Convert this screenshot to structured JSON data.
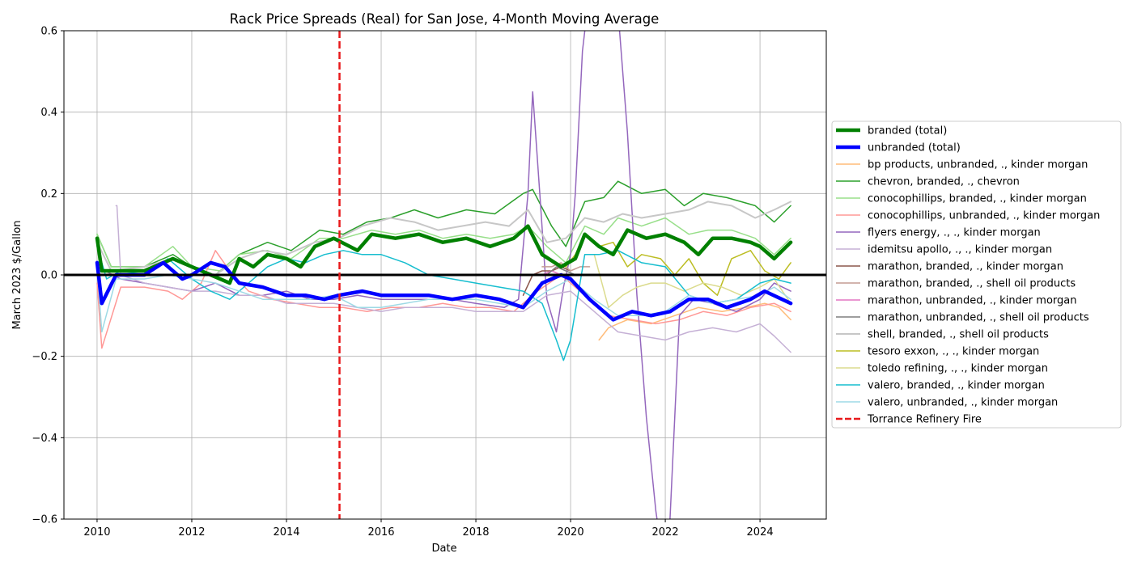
{
  "chart_data": {
    "type": "line",
    "title": "Rack Price Spreads (Real) for San Jose, 4-Month Moving Average",
    "xlabel": "Date",
    "ylabel": "March 2023 $/Gallon",
    "xlim": [
      2009.3,
      2025.4
    ],
    "ylim": [
      -0.6,
      0.6
    ],
    "x_ticks": [
      2010,
      2012,
      2014,
      2016,
      2018,
      2020,
      2022,
      2024
    ],
    "y_ticks": [
      -0.6,
      -0.4,
      -0.2,
      0.0,
      0.2,
      0.4,
      0.6
    ],
    "x_tick_labels": [
      "2010",
      "2012",
      "2014",
      "2016",
      "2018",
      "2020",
      "2022",
      "2024"
    ],
    "y_tick_labels": [
      "−0.6",
      "−0.4",
      "−0.2",
      "0.0",
      "0.2",
      "0.4",
      "0.6"
    ],
    "grid": true,
    "legend_position": "outside-right",
    "zero_line": {
      "y": 0.0,
      "color": "#000000"
    },
    "event_line": {
      "x": 2015.12,
      "name": "Torrance Refinery Fire",
      "color": "#e8191b",
      "dashed": true
    },
    "series": [
      {
        "name": "branded (total)",
        "color": "#008000",
        "width": 4.5,
        "x": [
          2010.0,
          2010.1,
          2010.4,
          2011.0,
          2011.6,
          2012.0,
          2012.4,
          2012.8,
          2013.0,
          2013.3,
          2013.6,
          2014.0,
          2014.3,
          2014.6,
          2015.0,
          2015.5,
          2015.8,
          2016.3,
          2016.8,
          2017.3,
          2017.8,
          2018.3,
          2018.8,
          2019.1,
          2019.4,
          2019.8,
          2020.1,
          2020.3,
          2020.6,
          2020.9,
          2021.2,
          2021.6,
          2022.0,
          2022.4,
          2022.7,
          2023.0,
          2023.4,
          2023.8,
          2024.0,
          2024.3,
          2024.65
        ],
        "y": [
          0.09,
          0.01,
          0.01,
          0.01,
          0.04,
          0.02,
          0.0,
          -0.02,
          0.04,
          0.02,
          0.05,
          0.04,
          0.02,
          0.07,
          0.09,
          0.06,
          0.1,
          0.09,
          0.1,
          0.08,
          0.09,
          0.07,
          0.09,
          0.12,
          0.05,
          0.02,
          0.04,
          0.1,
          0.07,
          0.05,
          0.11,
          0.09,
          0.1,
          0.08,
          0.05,
          0.09,
          0.09,
          0.08,
          0.07,
          0.04,
          0.08
        ]
      },
      {
        "name": "unbranded (total)",
        "color": "#0000ff",
        "width": 4.5,
        "x": [
          2010.0,
          2010.1,
          2010.4,
          2011.0,
          2011.4,
          2011.8,
          2012.0,
          2012.4,
          2012.7,
          2013.0,
          2013.5,
          2014.0,
          2014.4,
          2014.8,
          2015.1,
          2015.6,
          2016.0,
          2016.5,
          2017.0,
          2017.5,
          2018.0,
          2018.5,
          2019.0,
          2019.4,
          2019.8,
          2020.0,
          2020.4,
          2020.9,
          2021.3,
          2021.7,
          2022.1,
          2022.5,
          2022.9,
          2023.3,
          2023.8,
          2024.1,
          2024.65
        ],
        "y": [
          0.03,
          -0.07,
          0.0,
          0.0,
          0.03,
          -0.01,
          0.0,
          0.03,
          0.02,
          -0.02,
          -0.03,
          -0.05,
          -0.05,
          -0.06,
          -0.05,
          -0.04,
          -0.05,
          -0.05,
          -0.05,
          -0.06,
          -0.05,
          -0.06,
          -0.08,
          -0.02,
          0.0,
          -0.01,
          -0.06,
          -0.11,
          -0.09,
          -0.1,
          -0.09,
          -0.06,
          -0.06,
          -0.08,
          -0.06,
          -0.04,
          -0.07
        ]
      },
      {
        "name": "bp products, unbranded, ., kinder morgan",
        "color": "#ffbb78",
        "width": 1.5,
        "x": [
          2020.6,
          2020.8,
          2021.2,
          2021.7,
          2022.2,
          2022.7,
          2023.2,
          2023.7,
          2024.1,
          2024.4,
          2024.65
        ],
        "y": [
          -0.16,
          -0.13,
          -0.11,
          -0.12,
          -0.1,
          -0.08,
          -0.09,
          -0.08,
          -0.07,
          -0.08,
          -0.11
        ]
      },
      {
        "name": "chevron, branded, ., chevron",
        "color": "#2ca02c",
        "width": 1.5,
        "x": [
          2010.0,
          2010.3,
          2011.0,
          2011.6,
          2012.0,
          2012.5,
          2013.0,
          2013.6,
          2014.1,
          2014.7,
          2015.2,
          2015.7,
          2016.2,
          2016.7,
          2017.2,
          2017.8,
          2018.4,
          2019.0,
          2019.2,
          2019.6,
          2019.9,
          2020.3,
          2020.7,
          2021.0,
          2021.5,
          2022.0,
          2022.4,
          2022.8,
          2023.3,
          2023.9,
          2024.3,
          2024.65
        ],
        "y": [
          0.1,
          0.02,
          0.02,
          0.05,
          0.02,
          0.0,
          0.05,
          0.08,
          0.06,
          0.11,
          0.1,
          0.13,
          0.14,
          0.16,
          0.14,
          0.16,
          0.15,
          0.2,
          0.21,
          0.12,
          0.07,
          0.18,
          0.19,
          0.23,
          0.2,
          0.21,
          0.17,
          0.2,
          0.19,
          0.17,
          0.13,
          0.17
        ]
      },
      {
        "name": "conocophillips, branded, ., kinder morgan",
        "color": "#98df8a",
        "width": 1.5,
        "x": [
          2010.0,
          2010.3,
          2011.0,
          2011.6,
          2012.0,
          2012.6,
          2013.0,
          2013.6,
          2014.1,
          2014.7,
          2015.2,
          2015.8,
          2016.3,
          2016.8,
          2017.3,
          2017.8,
          2018.3,
          2018.8,
          2019.1,
          2019.5,
          2019.9,
          2020.3,
          2020.7,
          2021.0,
          2021.5,
          2022.0,
          2022.5,
          2022.9,
          2023.4,
          2023.9,
          2024.3,
          2024.65
        ],
        "y": [
          0.1,
          0.02,
          0.02,
          0.07,
          0.02,
          0.01,
          0.05,
          0.06,
          0.04,
          0.09,
          0.09,
          0.11,
          0.1,
          0.11,
          0.09,
          0.1,
          0.09,
          0.1,
          0.12,
          0.07,
          0.03,
          0.12,
          0.1,
          0.14,
          0.12,
          0.14,
          0.1,
          0.11,
          0.11,
          0.09,
          0.05,
          0.09
        ]
      },
      {
        "name": "conocophillips, unbranded, ., kinder morgan",
        "color": "#ff9896",
        "width": 1.5,
        "x": [
          2010.0,
          2010.1,
          2010.5,
          2011.0,
          2011.5,
          2011.8,
          2012.2,
          2012.5,
          2012.8,
          2013.2,
          2013.7,
          2014.2,
          2014.7,
          2015.2,
          2015.7,
          2016.2,
          2016.8,
          2017.3,
          2017.8,
          2018.3,
          2018.8,
          2019.3,
          2019.8,
          2020.3,
          2020.8,
          2021.3,
          2021.8,
          2022.3,
          2022.8,
          2023.3,
          2023.8,
          2024.3,
          2024.65
        ],
        "y": [
          -0.02,
          -0.18,
          -0.03,
          -0.03,
          -0.04,
          -0.06,
          -0.02,
          0.06,
          0.01,
          -0.04,
          -0.06,
          -0.07,
          -0.08,
          -0.08,
          -0.09,
          -0.08,
          -0.08,
          -0.07,
          -0.08,
          -0.08,
          -0.09,
          -0.04,
          0.0,
          -0.05,
          -0.1,
          -0.11,
          -0.12,
          -0.11,
          -0.09,
          -0.1,
          -0.08,
          -0.07,
          -0.09
        ]
      },
      {
        "name": "flyers energy, ., ., kinder morgan",
        "color": "#9467bd",
        "width": 1.5,
        "x": [
          2010.0,
          2010.5,
          2011.0,
          2011.5,
          2012.0,
          2012.5,
          2013.0,
          2013.5,
          2014.0,
          2014.5,
          2015.0,
          2015.5,
          2016.0,
          2016.5,
          2017.0,
          2017.5,
          2018.0,
          2018.6,
          2018.9,
          2019.1,
          2019.2,
          2019.35,
          2019.5,
          2019.7,
          2019.85,
          2020.0,
          2020.1,
          2020.25,
          2020.4,
          2020.6,
          2020.8,
          2021.0,
          2021.2,
          2021.4,
          2021.6,
          2021.8,
          2021.95,
          2022.0,
          2022.1,
          2022.3,
          2022.6,
          2023.0,
          2023.5,
          2024.0,
          2024.3,
          2024.65
        ],
        "y": [
          0.02,
          -0.01,
          -0.02,
          -0.03,
          -0.04,
          -0.02,
          -0.05,
          -0.05,
          -0.04,
          -0.06,
          -0.06,
          -0.05,
          -0.06,
          -0.06,
          -0.06,
          -0.06,
          -0.07,
          -0.08,
          -0.06,
          0.2,
          0.45,
          0.2,
          -0.06,
          -0.14,
          -0.03,
          0.05,
          0.2,
          0.55,
          0.7,
          0.8,
          0.75,
          0.65,
          0.35,
          -0.05,
          -0.35,
          -0.58,
          -0.7,
          -0.75,
          -0.6,
          -0.1,
          -0.06,
          -0.07,
          -0.09,
          -0.06,
          -0.02,
          -0.04
        ]
      },
      {
        "name": "idemitsu apollo, ., ., kinder morgan",
        "color": "#c5b0d5",
        "width": 1.5,
        "x": [
          2010.4,
          2010.42,
          2010.5,
          2011.0,
          2011.5,
          2012.0,
          2012.5,
          2013.0,
          2013.5,
          2014.0,
          2014.5,
          2015.0,
          2015.5,
          2016.0,
          2016.5,
          2017.0,
          2017.5,
          2018.0,
          2018.5,
          2019.0,
          2019.5,
          2020.0,
          2020.5,
          2021.0,
          2021.5,
          2022.0,
          2022.5,
          2023.0,
          2023.5,
          2024.0,
          2024.3,
          2024.65
        ],
        "y": [
          0.17,
          0.17,
          0.0,
          -0.02,
          -0.03,
          -0.04,
          -0.04,
          -0.05,
          -0.05,
          -0.07,
          -0.07,
          -0.07,
          -0.08,
          -0.09,
          -0.08,
          -0.08,
          -0.08,
          -0.09,
          -0.09,
          -0.09,
          -0.05,
          -0.04,
          -0.09,
          -0.14,
          -0.15,
          -0.16,
          -0.14,
          -0.13,
          -0.14,
          -0.12,
          -0.15,
          -0.19
        ]
      },
      {
        "name": "marathon, branded, ., kinder morgan",
        "color": "#8c564b",
        "width": 1.5,
        "x": [
          2019.0,
          2019.2,
          2019.4,
          2019.6,
          2019.8,
          2020.0
        ],
        "y": [
          -0.05,
          0.0,
          0.01,
          0.01,
          0.02,
          0.01
        ]
      },
      {
        "name": "marathon, branded, ., shell oil products",
        "color": "#c49c94",
        "width": 1.5,
        "x": [
          2019.4,
          2019.6,
          2019.8,
          2020.0,
          2020.2,
          2020.4
        ],
        "y": [
          0.02,
          0.02,
          0.03,
          0.01,
          0.02,
          0.02
        ]
      },
      {
        "name": "marathon, unbranded, ., kinder morgan",
        "color": "#e377c2",
        "width": 1.5,
        "x": [
          2019.4,
          2019.6,
          2019.8,
          2020.0
        ],
        "y": [
          0.0,
          0.01,
          0.0,
          -0.01
        ]
      },
      {
        "name": "marathon, unbranded, ., shell oil products",
        "color": "#7f7f7f",
        "width": 1.5,
        "x": [
          2019.5,
          2019.7,
          2019.9,
          2020.1
        ],
        "y": [
          0.0,
          0.02,
          0.01,
          0.0
        ]
      },
      {
        "name": "shell, branded, ., shell oil products",
        "color": "#c7c7c7",
        "width": 2.0,
        "x": [
          2010.0,
          2010.3,
          2011.0,
          2011.6,
          2012.0,
          2012.5,
          2013.0,
          2013.5,
          2014.0,
          2014.6,
          2015.1,
          2015.6,
          2016.2,
          2016.7,
          2017.2,
          2017.7,
          2018.2,
          2018.7,
          2019.1,
          2019.5,
          2019.9,
          2020.3,
          2020.7,
          2021.1,
          2021.5,
          2022.0,
          2022.5,
          2022.9,
          2023.4,
          2023.9,
          2024.3,
          2024.65
        ],
        "y": [
          0.08,
          0.01,
          0.02,
          0.04,
          0.02,
          0.0,
          0.04,
          0.06,
          0.05,
          0.08,
          0.09,
          0.12,
          0.14,
          0.13,
          0.11,
          0.12,
          0.13,
          0.12,
          0.16,
          0.08,
          0.09,
          0.14,
          0.13,
          0.15,
          0.14,
          0.15,
          0.16,
          0.18,
          0.17,
          0.14,
          0.16,
          0.18
        ]
      },
      {
        "name": "tesoro exxon, ., ., kinder morgan",
        "color": "#bcbd22",
        "width": 1.5,
        "x": [
          2019.7,
          2019.9,
          2020.1,
          2020.3,
          2020.6,
          2020.9,
          2021.2,
          2021.5,
          2021.9,
          2022.2,
          2022.5,
          2022.8,
          2023.1,
          2023.4,
          2023.8,
          2024.1,
          2024.4,
          2024.65
        ],
        "y": [
          0.03,
          0.02,
          0.05,
          0.1,
          0.07,
          0.08,
          0.02,
          0.05,
          0.04,
          0.0,
          0.04,
          -0.02,
          -0.05,
          0.04,
          0.06,
          0.01,
          -0.01,
          0.03
        ]
      },
      {
        "name": "toledo refining, ., ., kinder morgan",
        "color": "#dbdb8d",
        "width": 1.5,
        "x": [
          2020.5,
          2020.8,
          2021.1,
          2021.4,
          2021.7,
          2022.0,
          2022.4,
          2022.8,
          2023.2,
          2023.6,
          2024.0,
          2024.3,
          2024.65
        ],
        "y": [
          0.05,
          -0.08,
          -0.05,
          -0.03,
          -0.02,
          -0.02,
          -0.04,
          -0.02,
          -0.03,
          -0.05,
          -0.03,
          -0.01,
          -0.07
        ]
      },
      {
        "name": "valero, branded, ., kinder morgan",
        "color": "#17becf",
        "width": 1.5,
        "x": [
          2010.0,
          2010.2,
          2010.5,
          2011.0,
          2011.5,
          2012.0,
          2012.4,
          2012.8,
          2013.2,
          2013.6,
          2014.0,
          2014.4,
          2014.8,
          2015.2,
          2015.6,
          2016.0,
          2016.5,
          2017.0,
          2017.5,
          2018.0,
          2018.5,
          2019.0,
          2019.4,
          2019.7,
          2019.85,
          2020.0,
          2020.3,
          2020.6,
          2021.0,
          2021.5,
          2022.0,
          2022.5,
          2023.0,
          2023.5,
          2024.0,
          2024.3,
          2024.65
        ],
        "y": [
          0.07,
          -0.01,
          0.01,
          0.0,
          0.04,
          -0.01,
          -0.04,
          -0.06,
          -0.02,
          0.02,
          0.04,
          0.03,
          0.05,
          0.06,
          0.05,
          0.05,
          0.03,
          0.0,
          -0.01,
          -0.02,
          -0.03,
          -0.04,
          -0.07,
          -0.16,
          -0.21,
          -0.16,
          0.05,
          0.05,
          0.06,
          0.03,
          0.02,
          -0.05,
          -0.07,
          -0.06,
          -0.02,
          -0.01,
          -0.02
        ]
      },
      {
        "name": "valero, unbranded, ., kinder morgan",
        "color": "#9edae5",
        "width": 1.5,
        "x": [
          2010.0,
          2010.1,
          2010.4,
          2011.0,
          2011.5,
          2012.0,
          2012.5,
          2013.0,
          2013.5,
          2014.0,
          2014.5,
          2015.0,
          2015.5,
          2016.0,
          2016.5,
          2017.0,
          2017.5,
          2018.0,
          2018.5,
          2019.0,
          2019.5,
          2020.0,
          2020.5,
          2021.0,
          2021.5,
          2022.0,
          2022.5,
          2023.0,
          2023.5,
          2024.0,
          2024.3,
          2024.65
        ],
        "y": [
          0.02,
          -0.14,
          -0.01,
          -0.01,
          0.0,
          -0.01,
          -0.02,
          -0.04,
          -0.06,
          -0.06,
          -0.06,
          -0.05,
          -0.08,
          -0.08,
          -0.07,
          -0.06,
          -0.06,
          -0.06,
          -0.07,
          -0.08,
          -0.04,
          -0.01,
          -0.06,
          -0.1,
          -0.1,
          -0.09,
          -0.05,
          -0.07,
          -0.06,
          -0.05,
          -0.03,
          -0.06
        ]
      }
    ]
  }
}
